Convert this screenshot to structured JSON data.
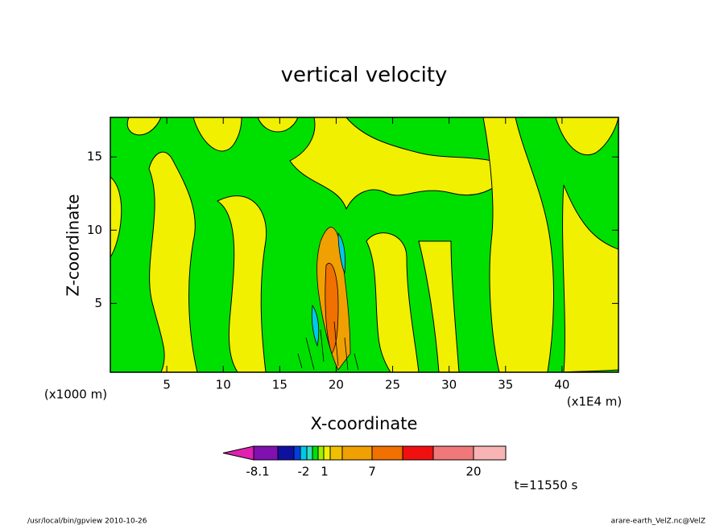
{
  "chart_data": {
    "type": "contour",
    "title": "vertical velocity",
    "x_label": "X-coordinate",
    "y_label": "Z-coordinate",
    "x_unit_left": "(x1000 m)",
    "x_unit_right": "(x1E4 m)",
    "time_label": "t=11550 s",
    "footer_left": "/usr/local/bin/gpview  2010-10-26",
    "footer_right": "arare-earth_VelZ.nc@VelZ",
    "xlim": [
      0,
      45
    ],
    "xticks": [
      5,
      10,
      15,
      20,
      25,
      30,
      35,
      40
    ],
    "ylim": [
      0.3,
      17.7
    ],
    "yticks": [
      5,
      10,
      15
    ],
    "colorbar_colors": [
      "#e020b0",
      "#8010b0",
      "#1010a0",
      "#0040e0",
      "#00c8e8",
      "#30e0c0",
      "#00e000",
      "#a0f000",
      "#f0f000",
      "#f0c000",
      "#f0a000",
      "#f07000",
      "#f01010",
      "#f07878",
      "#f8b4b4",
      "#f8d8d0"
    ],
    "colorbar_ticks": [
      -8.1,
      -2,
      1,
      7,
      20
    ]
  }
}
